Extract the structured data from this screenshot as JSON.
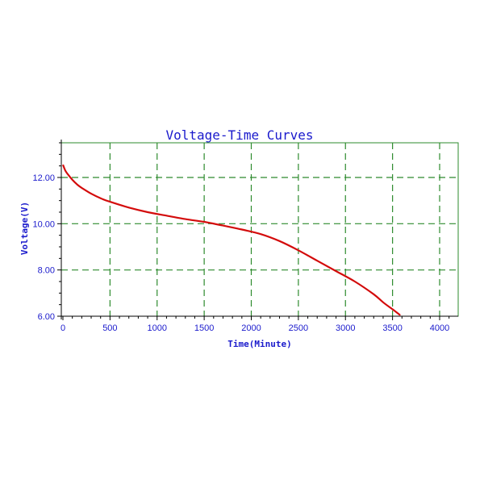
{
  "chart_data": {
    "type": "line",
    "title": "Voltage-Time Curves",
    "xlabel": "Time(Minute)",
    "ylabel": "Voltage(V)",
    "xlim": [
      0,
      4200
    ],
    "ylim": [
      6.0,
      13.5
    ],
    "xticks": [
      0,
      500,
      1000,
      1500,
      2000,
      2500,
      3000,
      3500,
      4000
    ],
    "xtick_labels": [
      "0",
      "500",
      "1000",
      "1500",
      "2000",
      "2500",
      "3000",
      "3500",
      "4000"
    ],
    "yticks": [
      6.0,
      8.0,
      10.0,
      12.0
    ],
    "ytick_labels": [
      "6.00",
      "8.00",
      "10.00",
      "12.00"
    ],
    "grid": true,
    "colors": {
      "axis": "#1a1acc",
      "grid": "#2e8b2e",
      "frame": "#2e8b2e",
      "series": "#dd1111"
    },
    "series": [
      {
        "x": [
          0,
          25,
          50,
          100,
          150,
          200,
          300,
          400,
          500,
          700,
          900,
          1100,
          1300,
          1500,
          1700,
          1900,
          2100,
          2300,
          2500,
          2700,
          2900,
          3100,
          3300,
          3400,
          3500,
          3580
        ],
        "y": [
          12.55,
          12.3,
          12.15,
          11.9,
          11.7,
          11.55,
          11.3,
          11.1,
          10.95,
          10.7,
          10.5,
          10.35,
          10.2,
          10.08,
          9.92,
          9.75,
          9.55,
          9.25,
          8.85,
          8.4,
          7.95,
          7.5,
          6.95,
          6.6,
          6.3,
          6.05
        ]
      }
    ]
  }
}
